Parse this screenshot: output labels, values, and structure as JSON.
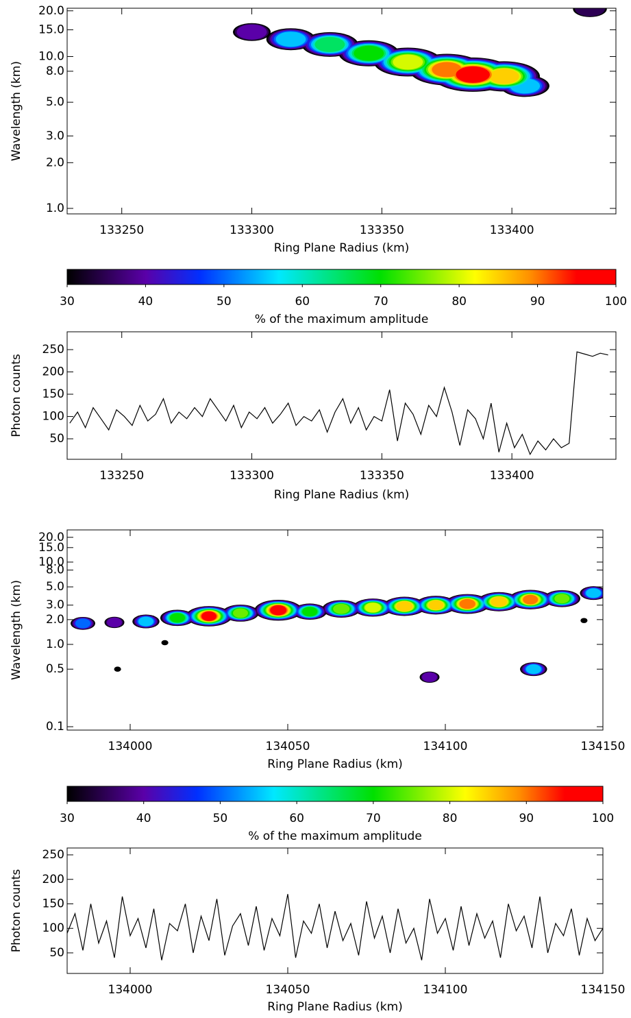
{
  "chart_data": [
    {
      "type": "heatmap",
      "xlabel": "Ring Plane Radius (km)",
      "ylabel": "Wavelength (km)",
      "xlim": [
        133229,
        133440
      ],
      "xticks": [
        133250,
        133300,
        133350,
        133400
      ],
      "ylim": [
        0.92,
        20.8
      ],
      "log_y": true,
      "yticks": [
        {
          "value": 1,
          "label": "1.0"
        },
        {
          "value": 2,
          "label": "2.0"
        },
        {
          "value": 3,
          "label": "3.0"
        },
        {
          "value": 5,
          "label": "5.0"
        },
        {
          "value": 8,
          "label": "8.0"
        },
        {
          "value": 10,
          "label": "10.0"
        },
        {
          "value": 15,
          "label": "15.0"
        },
        {
          "value": 20,
          "label": "20.0"
        }
      ],
      "blobs": [
        {
          "x": 133300,
          "wavelength": 14.5,
          "amplitude": 40
        },
        {
          "x": 133315,
          "wavelength": 13,
          "amplitude": 55
        },
        {
          "x": 133330,
          "wavelength": 12,
          "amplitude": 65
        },
        {
          "x": 133345,
          "wavelength": 10.5,
          "amplitude": 70
        },
        {
          "x": 133360,
          "wavelength": 9.2,
          "amplitude": 80
        },
        {
          "x": 133375,
          "wavelength": 8.2,
          "amplitude": 90
        },
        {
          "x": 133385,
          "wavelength": 7.6,
          "amplitude": 100
        },
        {
          "x": 133397,
          "wavelength": 7.4,
          "amplitude": 85
        },
        {
          "x": 133405,
          "wavelength": 6.4,
          "amplitude": 55
        },
        {
          "x": 133430,
          "wavelength": 20.6,
          "amplitude": 35
        }
      ]
    },
    {
      "type": "colorbar",
      "label": "% of the maximum amplitude",
      "clim": [
        30,
        100
      ],
      "ticks": [
        30,
        40,
        50,
        60,
        70,
        80,
        90,
        100
      ],
      "colormap": [
        [
          30,
          "#000000"
        ],
        [
          40,
          "#5a00a8"
        ],
        [
          47,
          "#0030ff"
        ],
        [
          57,
          "#00e8ff"
        ],
        [
          70,
          "#00e000"
        ],
        [
          82,
          "#ffff00"
        ],
        [
          89,
          "#ff9000"
        ],
        [
          95,
          "#ff0000"
        ],
        [
          100,
          "#ff0000"
        ]
      ]
    },
    {
      "type": "line",
      "xlabel": "Ring Plane Radius (km)",
      "ylabel": "Photon counts",
      "color": "#000000",
      "xlim": [
        133229,
        133440
      ],
      "xticks": [
        133250,
        133300,
        133350,
        133400
      ],
      "ylim": [
        4,
        290
      ],
      "yticks": [
        50,
        100,
        150,
        200,
        250
      ],
      "x": [
        133230,
        133233,
        133236,
        133239,
        133242,
        133245,
        133248,
        133251,
        133254,
        133257,
        133260,
        133263,
        133266,
        133269,
        133272,
        133275,
        133278,
        133281,
        133284,
        133287,
        133290,
        133293,
        133296,
        133299,
        133302,
        133305,
        133308,
        133311,
        133314,
        133317,
        133320,
        133323,
        133326,
        133329,
        133332,
        133335,
        133338,
        133341,
        133344,
        133347,
        133350,
        133353,
        133356,
        133359,
        133362,
        133365,
        133368,
        133371,
        133374,
        133377,
        133380,
        133383,
        133386,
        133389,
        133392,
        133395,
        133398,
        133401,
        133404,
        133407,
        133410,
        133413,
        133416,
        133419,
        133422,
        133425,
        133428,
        133431,
        133434,
        133437
      ],
      "values": [
        85,
        110,
        75,
        120,
        95,
        70,
        115,
        100,
        80,
        125,
        90,
        105,
        140,
        85,
        110,
        95,
        120,
        100,
        140,
        115,
        90,
        125,
        75,
        110,
        95,
        120,
        85,
        105,
        130,
        80,
        100,
        90,
        115,
        65,
        110,
        140,
        85,
        120,
        70,
        100,
        90,
        160,
        45,
        130,
        105,
        60,
        125,
        100,
        165,
        110,
        35,
        115,
        95,
        50,
        130,
        20,
        85,
        30,
        60,
        15,
        45,
        25,
        50,
        30,
        40,
        245,
        240,
        235,
        242,
        238
      ]
    },
    {
      "type": "heatmap",
      "xlabel": "Ring Plane Radius (km)",
      "ylabel": "Wavelength (km)",
      "xlim": [
        133980,
        134150
      ],
      "xticks": [
        134000,
        134050,
        134100,
        134150
      ],
      "ylim": [
        0.091,
        24.6
      ],
      "log_y": true,
      "yticks": [
        0.1,
        0.5,
        {
          "value": 1,
          "label": "1.0"
        },
        {
          "value": 2,
          "label": "2.0"
        },
        {
          "value": 3,
          "label": "3.0"
        },
        {
          "value": 5,
          "label": "5.0"
        },
        {
          "value": 8,
          "label": "8.0"
        },
        {
          "value": 10,
          "label": "10.0"
        },
        {
          "value": 15,
          "label": "15.0"
        },
        {
          "value": 20,
          "label": "20.0"
        }
      ],
      "blobs": [
        {
          "x": 133985,
          "wavelength": 1.8,
          "amplitude": 50
        },
        {
          "x": 133995,
          "wavelength": 1.85,
          "amplitude": 40
        },
        {
          "x": 134005,
          "wavelength": 1.9,
          "amplitude": 55
        },
        {
          "x": 134015,
          "wavelength": 2.1,
          "amplitude": 70
        },
        {
          "x": 134025,
          "wavelength": 2.2,
          "amplitude": 95
        },
        {
          "x": 134035,
          "wavelength": 2.4,
          "amplitude": 75
        },
        {
          "x": 134047,
          "wavelength": 2.6,
          "amplitude": 98
        },
        {
          "x": 134057,
          "wavelength": 2.5,
          "amplitude": 70
        },
        {
          "x": 134067,
          "wavelength": 2.7,
          "amplitude": 78
        },
        {
          "x": 134077,
          "wavelength": 2.8,
          "amplitude": 82
        },
        {
          "x": 134087,
          "wavelength": 2.9,
          "amplitude": 88
        },
        {
          "x": 134097,
          "wavelength": 3.0,
          "amplitude": 85
        },
        {
          "x": 134107,
          "wavelength": 3.1,
          "amplitude": 92
        },
        {
          "x": 134117,
          "wavelength": 3.3,
          "amplitude": 88
        },
        {
          "x": 134127,
          "wavelength": 3.5,
          "amplitude": 90
        },
        {
          "x": 134137,
          "wavelength": 3.6,
          "amplitude": 75
        },
        {
          "x": 134147,
          "wavelength": 4.2,
          "amplitude": 55
        },
        {
          "x": 134011,
          "wavelength": 1.05,
          "amplitude": 32
        },
        {
          "x": 133996,
          "wavelength": 0.5,
          "amplitude": 32
        },
        {
          "x": 134095,
          "wavelength": 0.4,
          "amplitude": 40
        },
        {
          "x": 134128,
          "wavelength": 0.5,
          "amplitude": 55
        },
        {
          "x": 134144,
          "wavelength": 1.95,
          "amplitude": 32
        }
      ]
    },
    {
      "type": "colorbar",
      "label": "% of the maximum amplitude",
      "clim": [
        30,
        100
      ],
      "ticks": [
        30,
        40,
        50,
        60,
        70,
        80,
        90,
        100
      ],
      "colormap": [
        [
          30,
          "#000000"
        ],
        [
          40,
          "#5a00a8"
        ],
        [
          47,
          "#0030ff"
        ],
        [
          57,
          "#00e8ff"
        ],
        [
          70,
          "#00e000"
        ],
        [
          82,
          "#ffff00"
        ],
        [
          89,
          "#ff9000"
        ],
        [
          95,
          "#ff0000"
        ],
        [
          100,
          "#ff0000"
        ]
      ]
    },
    {
      "type": "line",
      "xlabel": "Ring Plane Radius (km)",
      "ylabel": "Photon counts",
      "color": "#000000",
      "xlim": [
        133980,
        134150
      ],
      "xticks": [
        134000,
        134050,
        134100,
        134150
      ],
      "ylim": [
        8,
        264
      ],
      "yticks": [
        50,
        100,
        150,
        200,
        250
      ],
      "x": [
        133980,
        133982.5,
        133985,
        133987.5,
        133990,
        133992.5,
        133995,
        133997.5,
        134000,
        134002.5,
        134005,
        134007.5,
        134010,
        134012.5,
        134015,
        134017.5,
        134020,
        134022.5,
        134025,
        134027.5,
        134030,
        134032.5,
        134035,
        134037.5,
        134040,
        134042.5,
        134045,
        134047.5,
        134050,
        134052.5,
        134055,
        134057.5,
        134060,
        134062.5,
        134065,
        134067.5,
        134070,
        134072.5,
        134075,
        134077.5,
        134080,
        134082.5,
        134085,
        134087.5,
        134090,
        134092.5,
        134095,
        134097.5,
        134100,
        134102.5,
        134105,
        134107.5,
        134110,
        134112.5,
        134115,
        134117.5,
        134120,
        134122.5,
        134125,
        134127.5,
        134130,
        134132.5,
        134135,
        134137.5,
        134140,
        134142.5,
        134145,
        134147.5,
        134150
      ],
      "values": [
        90,
        130,
        55,
        150,
        70,
        115,
        40,
        165,
        85,
        120,
        60,
        140,
        35,
        110,
        95,
        150,
        50,
        125,
        75,
        160,
        45,
        105,
        130,
        65,
        145,
        55,
        120,
        85,
        170,
        40,
        115,
        90,
        150,
        60,
        135,
        75,
        110,
        45,
        155,
        80,
        125,
        50,
        140,
        70,
        100,
        35,
        160,
        90,
        120,
        55,
        145,
        65,
        130,
        80,
        115,
        40,
        150,
        95,
        125,
        60,
        165,
        50,
        110,
        85,
        140,
        45,
        120,
        75,
        100
      ]
    }
  ]
}
